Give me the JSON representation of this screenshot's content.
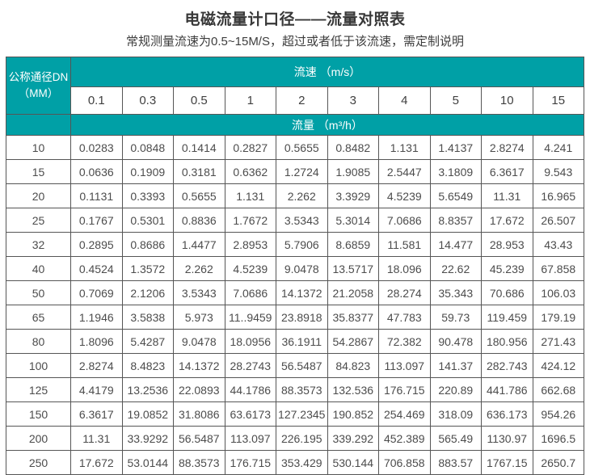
{
  "title": "电磁流量计口径——流量对照表",
  "subtitle": "常规测量流速为0.5~15M/S，超过或者低于该流速，需定制说明",
  "colors": {
    "header_teal": "#00a0a6",
    "header_text": "#ffffff",
    "grid_line": "#565656",
    "title_text": "#383838",
    "cell_text": "#4c4c4c"
  },
  "chart_data": {
    "type": "table",
    "corner_header_line1": "公称通径DN",
    "corner_header_line2": "（MM）",
    "velocity_header": "流速 （m/s）",
    "flow_header": "流量 （m³/h）",
    "velocities": [
      "0.1",
      "0.3",
      "0.5",
      "1",
      "2",
      "3",
      "4",
      "5",
      "10",
      "15"
    ],
    "rows": [
      {
        "dn": "10",
        "values": [
          "0.0283",
          "0.0848",
          "0.1414",
          "0.2827",
          "0.5655",
          "0.8482",
          "1.131",
          "1.4137",
          "2.8274",
          "4.241"
        ]
      },
      {
        "dn": "15",
        "values": [
          "0.0636",
          "0.1909",
          "0.3181",
          "0.6362",
          "1.2724",
          "1.9085",
          "2.5447",
          "3.1809",
          "6.3617",
          "9.543"
        ]
      },
      {
        "dn": "20",
        "values": [
          "0.1131",
          "0.3393",
          "0.5655",
          "1.131",
          "2.262",
          "3.3929",
          "4.5239",
          "5.6549",
          "11.31",
          "16.965"
        ]
      },
      {
        "dn": "25",
        "values": [
          "0.1767",
          "0.5301",
          "0.8836",
          "1.7672",
          "3.5343",
          "5.3014",
          "7.0686",
          "8.8357",
          "17.672",
          "26.507"
        ]
      },
      {
        "dn": "32",
        "values": [
          "0.2895",
          "0.8686",
          "1.4477",
          "2.8953",
          "5.7906",
          "8.6859",
          "11.581",
          "14.477",
          "28.953",
          "43.43"
        ]
      },
      {
        "dn": "40",
        "values": [
          "0.4524",
          "1.3572",
          "2.262",
          "4.5239",
          "9.0478",
          "13.5717",
          "18.096",
          "22.62",
          "45.239",
          "67.858"
        ]
      },
      {
        "dn": "50",
        "values": [
          "0.7069",
          "2.1206",
          "3.5343",
          "7.0686",
          "14.1372",
          "21.2058",
          "28.274",
          "35.343",
          "70.686",
          "106.03"
        ]
      },
      {
        "dn": "65",
        "values": [
          "1.1946",
          "3.5838",
          "5.973",
          "11..9459",
          "23.8918",
          "35.8377",
          "47.783",
          "59.73",
          "119.459",
          "179.19"
        ]
      },
      {
        "dn": "80",
        "values": [
          "1.8096",
          "5.4287",
          "9.0478",
          "18.0956",
          "36.1911",
          "54.2867",
          "72.382",
          "90.478",
          "180.956",
          "271.43"
        ]
      },
      {
        "dn": "100",
        "values": [
          "2.8274",
          "8.4823",
          "14.1372",
          "28.2743",
          "56.5487",
          "84.823",
          "113.097",
          "141.37",
          "282.743",
          "424.12"
        ]
      },
      {
        "dn": "125",
        "values": [
          "4.4179",
          "13.2536",
          "22.0893",
          "44.1786",
          "88.3573",
          "132.536",
          "176.715",
          "220.89",
          "441.786",
          "662.68"
        ]
      },
      {
        "dn": "150",
        "values": [
          "6.3617",
          "19.0852",
          "31.8086",
          "63.6173",
          "127.2345",
          "190.852",
          "254.469",
          "318.09",
          "636.173",
          "954.26"
        ]
      },
      {
        "dn": "200",
        "values": [
          "11.31",
          "33.9292",
          "56.5487",
          "113.097",
          "226.195",
          "339.292",
          "452.389",
          "565.49",
          "1130.97",
          "1696.5"
        ]
      },
      {
        "dn": "250",
        "values": [
          "17.672",
          "53.0144",
          "88.3573",
          "176.715",
          "353.429",
          "530.144",
          "706.858",
          "883.57",
          "1767.15",
          "2650.7"
        ]
      }
    ]
  }
}
